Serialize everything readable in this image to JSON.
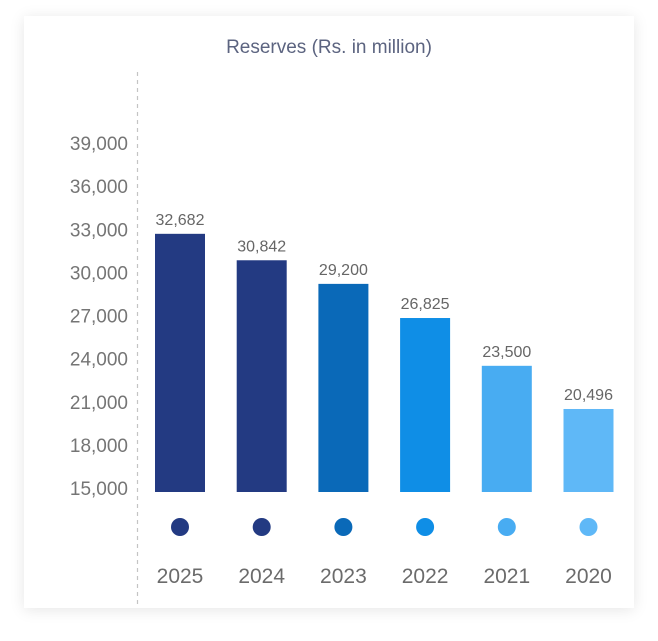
{
  "chart_data": {
    "type": "bar",
    "title": "Reserves (Rs. in million)",
    "xlabel": "",
    "ylabel": "",
    "ylim": [
      15000,
      39000
    ],
    "yticks": [
      15000,
      18000,
      21000,
      24000,
      27000,
      30000,
      33000,
      36000,
      39000
    ],
    "ytick_labels": [
      "15,000",
      "18,000",
      "21,000",
      "24,000",
      "27,000",
      "30,000",
      "33,000",
      "36,000",
      "39,000"
    ],
    "categories": [
      "2025",
      "2024",
      "2023",
      "2022",
      "2021",
      "2020"
    ],
    "values": [
      32682,
      30842,
      29200,
      26825,
      23500,
      20496
    ],
    "value_labels": [
      "32,682",
      "30,842",
      "29,200",
      "26,825",
      "23,500",
      "20,496"
    ],
    "bar_colors": [
      "#233a82",
      "#233a82",
      "#0a69b8",
      "#0f8ee6",
      "#48acf2",
      "#5fb8f7"
    ],
    "grid": false,
    "legend": "none"
  }
}
